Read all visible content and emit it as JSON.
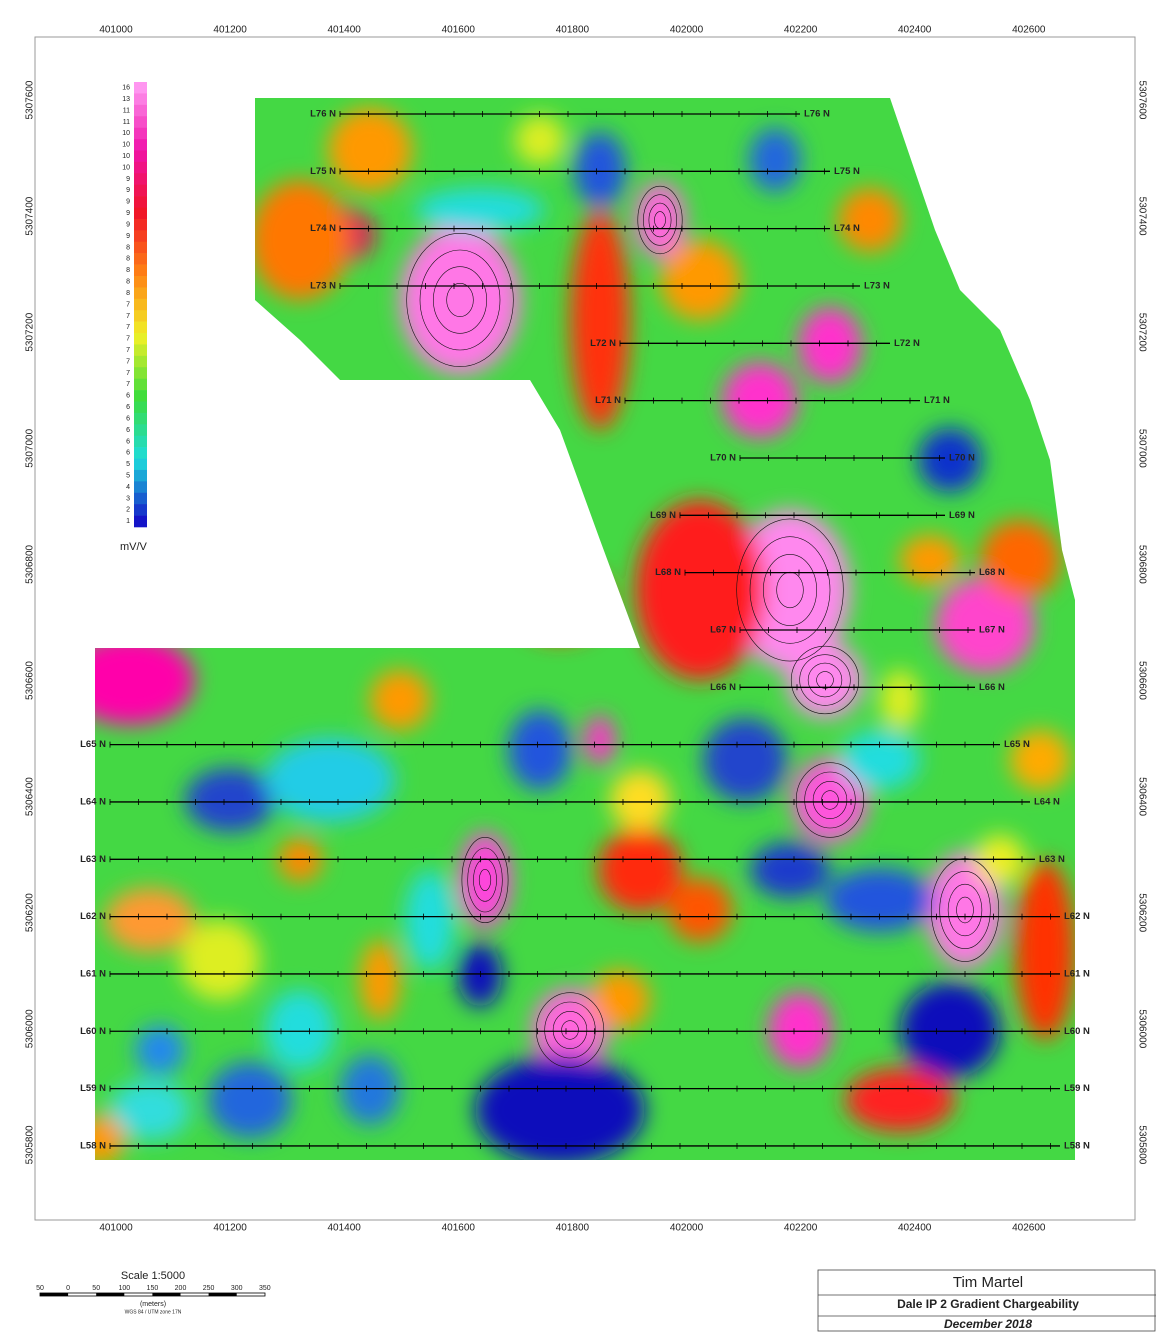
{
  "axes": {
    "easting": [
      "401000",
      "401200",
      "401400",
      "401600",
      "401800",
      "402000",
      "402200",
      "402400",
      "402600"
    ],
    "northing": [
      "5307600",
      "5307400",
      "5307200",
      "5307000",
      "5306800",
      "5306600",
      "5306400",
      "5306200",
      "5306000",
      "5305800"
    ]
  },
  "legend": {
    "values": [
      16,
      13,
      11,
      11,
      10,
      10,
      10,
      10,
      9,
      9,
      9,
      9,
      9,
      9,
      8,
      8,
      8,
      8,
      8,
      7,
      7,
      7,
      7,
      7,
      7,
      7,
      7,
      6,
      6,
      6,
      6,
      6,
      6,
      5,
      5,
      4,
      3,
      2,
      1
    ],
    "unit": "mV/V"
  },
  "survey_lines": [
    {
      "left": "L76 N",
      "right": "L76 N"
    },
    {
      "left": "L75 N",
      "right": "L75 N"
    },
    {
      "left": "L74 N",
      "right": "L74 N"
    },
    {
      "left": "L73 N",
      "right": "L73 N"
    },
    {
      "left": "L72 N",
      "right": "L72 N"
    },
    {
      "left": "L71 N",
      "right": "L71 N"
    },
    {
      "left": "L70 N",
      "right": "L70 N"
    },
    {
      "left": "L69 N",
      "right": "L69 N"
    },
    {
      "left": "L68 N",
      "right": "L68 N"
    },
    {
      "left": "L67 N",
      "right": "L67 N"
    },
    {
      "left": "L66 N",
      "right": "L66 N"
    },
    {
      "left": "L65 N",
      "right": "L65 N"
    },
    {
      "left": "L64 N",
      "right": "L64 N"
    },
    {
      "left": "L63 N",
      "right": "L63 N"
    },
    {
      "left": "L62 N",
      "right": "L62 N"
    },
    {
      "left": "L61 N",
      "right": "L61 N"
    },
    {
      "left": "L60 N",
      "right": "L60 N"
    },
    {
      "left": "L59 N",
      "right": "L59 N"
    },
    {
      "left": "L58 N",
      "right": "L58 N"
    }
  ],
  "scale": {
    "title": "Scale 1:5000",
    "ticks": [
      "50",
      "0",
      "50",
      "100",
      "150",
      "200",
      "250",
      "300",
      "350"
    ],
    "unit": "(meters)",
    "datum": "WGS 84 / UTM zone 17N"
  },
  "title_block": {
    "author": "Tim Martel",
    "title": "Dale IP 2 Gradient Chargeability",
    "date": "December 2018"
  }
}
